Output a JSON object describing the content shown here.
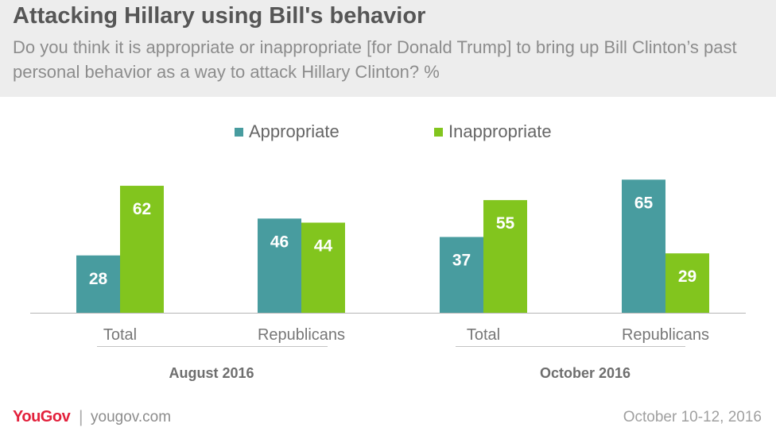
{
  "title": "Attacking Hillary using Bill's behavior",
  "subtitle": "Do you think it is appropriate or inappropriate [for Donald Trump] to bring up Bill Clinton’s past personal behavior as a way to attack Hillary Clinton? %",
  "colors": {
    "appropriate": "#489c9f",
    "inappropriate": "#82c51e",
    "header_bg": "#ededed"
  },
  "legend": [
    {
      "label": "Appropriate",
      "color": "#489c9f"
    },
    {
      "label": "Inappropriate",
      "color": "#82c51e"
    }
  ],
  "chart_data": {
    "type": "bar",
    "categories": [
      "Total",
      "Republicans",
      "Total",
      "Republicans"
    ],
    "groups": [
      {
        "label": "August 2016",
        "categories": [
          "Total",
          "Republicans"
        ]
      },
      {
        "label": "October 2016",
        "categories": [
          "Total",
          "Republicans"
        ]
      }
    ],
    "series": [
      {
        "name": "Appropriate",
        "values": [
          28,
          46,
          37,
          65
        ]
      },
      {
        "name": "Inappropriate",
        "values": [
          62,
          44,
          55,
          29
        ]
      }
    ],
    "ylim": [
      0,
      100
    ],
    "grid": false,
    "data_labels": true,
    "legend_position": "top-center"
  },
  "footer": {
    "logo": "YouGov",
    "separator": "|",
    "site": "yougov.com",
    "date": "October 10-12, 2016"
  }
}
